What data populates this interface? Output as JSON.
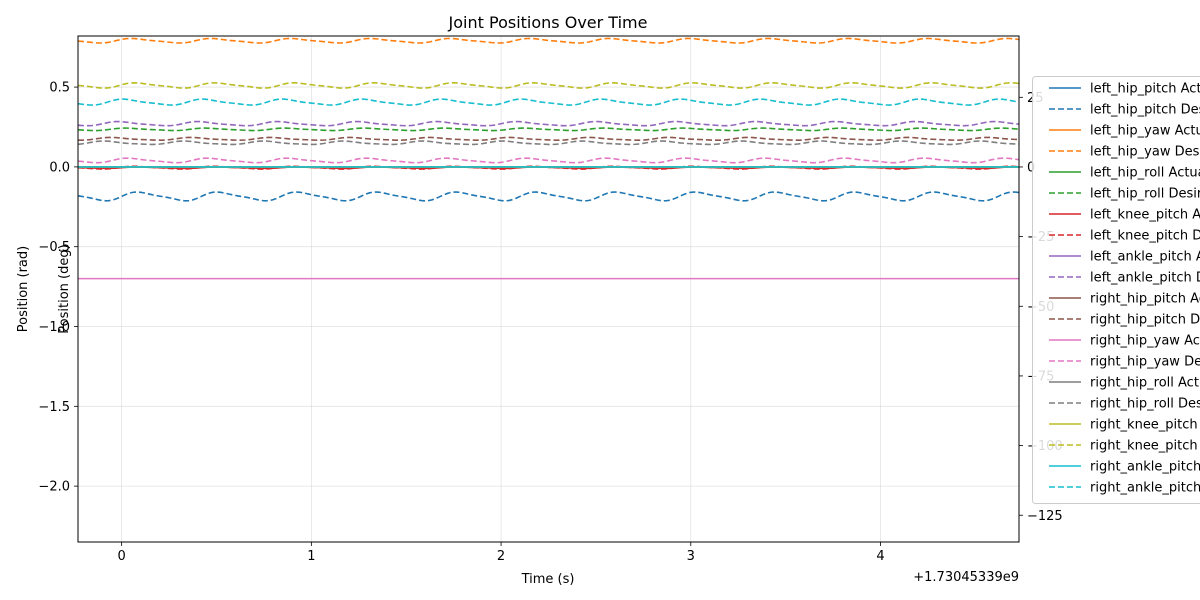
{
  "chart_data": {
    "type": "line",
    "title": "Joint Positions Over Time",
    "xlabel": "Time (s)",
    "ylabel": "Position (rad)",
    "ylabel_right": "Position (deg)",
    "x_offset_text": "+1.73045339e9",
    "xlim": [
      -0.23,
      4.73
    ],
    "ylim": [
      -2.35,
      0.82
    ],
    "ylim_right": [
      -134.6,
      47.0
    ],
    "x_ticks": [
      0,
      1,
      2,
      3,
      4
    ],
    "x_tick_labels": [
      "0",
      "1",
      "2",
      "3",
      "4"
    ],
    "y_ticks": [
      0.5,
      0.0,
      -0.5,
      -1.0,
      -1.5,
      -2.0
    ],
    "y_tick_labels": [
      "0.5",
      "0.0",
      "−0.5",
      "−1.0",
      "−1.5",
      "−2.0"
    ],
    "y_ticks_right": [
      25,
      0,
      -25,
      -50,
      -75,
      -100,
      -125
    ],
    "y_tick_labels_right": [
      "25",
      "0",
      "−25",
      "−50",
      "−75",
      "−100",
      "−125"
    ],
    "grid": true,
    "legend_position": "right, outside plot",
    "series": [
      {
        "name": "left_hip_pitch Actual",
        "color": "#1f77b4",
        "dash": "solid",
        "base": 0.0,
        "amp": 0.0,
        "period": 0.4,
        "phase": 0
      },
      {
        "name": "left_hip_pitch Desired",
        "color": "#1f77b4",
        "dash": "dashed",
        "base": -0.185,
        "amp": 0.025,
        "period": 0.42,
        "phase": 0.0
      },
      {
        "name": "left_hip_yaw Actual",
        "color": "#ff7f0e",
        "dash": "solid",
        "base": 0.0,
        "amp": 0.0,
        "period": 0.4,
        "phase": 0
      },
      {
        "name": "left_hip_yaw Desired",
        "color": "#ff7f0e",
        "dash": "dashed",
        "base": 0.79,
        "amp": 0.013,
        "period": 0.42,
        "phase": 0.5
      },
      {
        "name": "left_hip_roll Actual",
        "color": "#2ca02c",
        "dash": "solid",
        "base": 0.0,
        "amp": 0.0,
        "period": 0.4,
        "phase": 0
      },
      {
        "name": "left_hip_roll Desired",
        "color": "#2ca02c",
        "dash": "dashed",
        "base": 0.235,
        "amp": 0.007,
        "period": 0.42,
        "phase": 1.0
      },
      {
        "name": "left_knee_pitch Actual",
        "color": "#d62728",
        "dash": "solid",
        "base": -0.005,
        "amp": 0.004,
        "period": 0.42,
        "phase": 0
      },
      {
        "name": "left_knee_pitch Desired",
        "color": "#d62728",
        "dash": "dashed",
        "base": -0.005,
        "amp": 0.008,
        "period": 0.42,
        "phase": 0.3
      },
      {
        "name": "left_ankle_pitch Actual",
        "color": "#9467bd",
        "dash": "solid",
        "base": 0.0,
        "amp": 0.0,
        "period": 0.4,
        "phase": 0
      },
      {
        "name": "left_ankle_pitch Desired",
        "color": "#9467bd",
        "dash": "dashed",
        "base": 0.27,
        "amp": 0.012,
        "period": 0.42,
        "phase": 1.6
      },
      {
        "name": "right_hip_pitch Actual",
        "color": "#8c564b",
        "dash": "solid",
        "base": 0.0,
        "amp": 0.0,
        "period": 0.4,
        "phase": 0
      },
      {
        "name": "right_hip_pitch Desired",
        "color": "#8c564b",
        "dash": "dashed",
        "base": 0.175,
        "amp": 0.008,
        "period": 0.42,
        "phase": 2.2
      },
      {
        "name": "right_hip_yaw Actual",
        "color": "#e377c2",
        "dash": "solid",
        "base": -0.7,
        "amp": 0.0,
        "period": 0.4,
        "phase": 0
      },
      {
        "name": "right_hip_yaw Desired",
        "color": "#e377c2",
        "dash": "dashed",
        "base": 0.04,
        "amp": 0.013,
        "period": 0.42,
        "phase": 0.8
      },
      {
        "name": "right_hip_roll Actual",
        "color": "#7f7f7f",
        "dash": "solid",
        "base": 0.0,
        "amp": 0.0,
        "period": 0.4,
        "phase": 0
      },
      {
        "name": "right_hip_roll Desired",
        "color": "#7f7f7f",
        "dash": "dashed",
        "base": 0.15,
        "amp": 0.01,
        "period": 0.42,
        "phase": 2.8
      },
      {
        "name": "right_knee_pitch Actual",
        "color": "#bcbd22",
        "dash": "solid",
        "base": 0.0,
        "amp": 0.0,
        "period": 0.4,
        "phase": 0
      },
      {
        "name": "right_knee_pitch Desired",
        "color": "#bcbd22",
        "dash": "dashed",
        "base": 0.51,
        "amp": 0.015,
        "period": 0.42,
        "phase": 0.2
      },
      {
        "name": "right_ankle_pitch Actual",
        "color": "#17becf",
        "dash": "solid",
        "base": 0.0,
        "amp": 0.0,
        "period": 0.4,
        "phase": 0
      },
      {
        "name": "right_ankle_pitch Desired",
        "color": "#17becf",
        "dash": "dashed",
        "base": 0.405,
        "amp": 0.017,
        "period": 0.42,
        "phase": 1.2
      }
    ]
  }
}
